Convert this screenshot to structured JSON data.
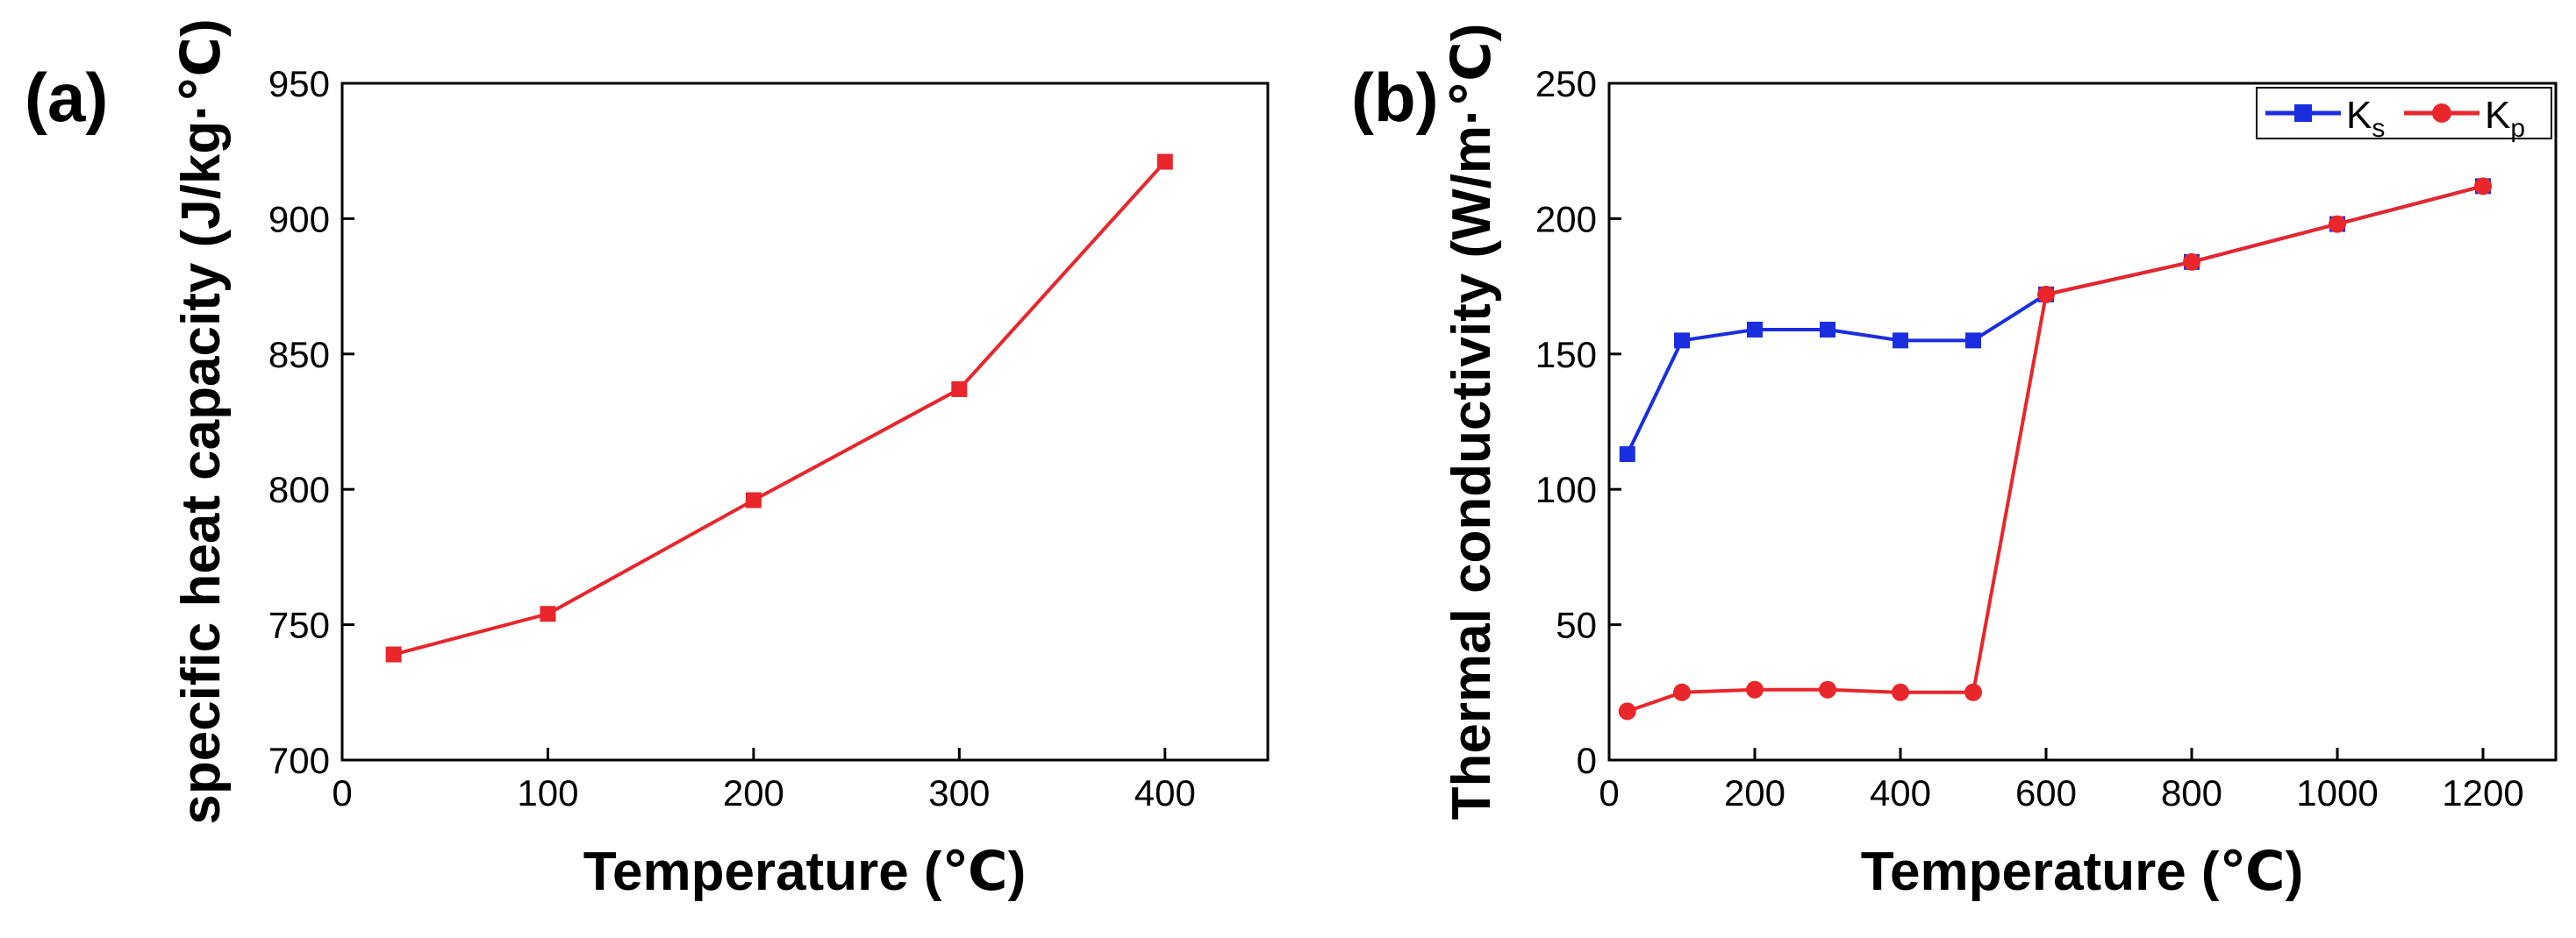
{
  "chart_data": [
    {
      "type": "line",
      "panel_label": "(a)",
      "title": "",
      "xlabel": "Temperature (℃)",
      "ylabel": "specific heat capacity (J/kg·℃)",
      "xlim": [
        0,
        450
      ],
      "ylim": [
        700,
        950
      ],
      "xticks": [
        0,
        100,
        200,
        300,
        400
      ],
      "yticks": [
        700,
        750,
        800,
        850,
        900,
        950
      ],
      "grid": false,
      "legend": null,
      "series": [
        {
          "name": "specific heat capacity",
          "color": "#e8262b",
          "marker": "square",
          "x": [
            25,
            100,
            200,
            300,
            400
          ],
          "values": [
            739,
            754,
            796,
            837,
            921
          ]
        }
      ]
    },
    {
      "type": "line",
      "panel_label": "(b)",
      "title": "",
      "xlabel": "Temperature (℃)",
      "ylabel": "Thermal conductivity (W/m·℃)",
      "xlim": [
        0,
        1300
      ],
      "ylim": [
        0,
        250
      ],
      "xticks": [
        0,
        200,
        400,
        600,
        800,
        1000,
        1200
      ],
      "yticks": [
        0,
        50,
        100,
        150,
        200,
        250
      ],
      "grid": false,
      "legend": {
        "placement": "top-right",
        "entries": [
          "K_s",
          "K_p"
        ]
      },
      "series": [
        {
          "name": "K",
          "subscript": "s",
          "color": "#1a2ee0",
          "marker": "square",
          "x": [
            25,
            100,
            200,
            300,
            400,
            500,
            600,
            800,
            1000,
            1200
          ],
          "values": [
            113,
            155,
            159,
            159,
            155,
            155,
            172,
            184,
            198,
            212
          ]
        },
        {
          "name": "K",
          "subscript": "p",
          "color": "#e8262b",
          "marker": "circle",
          "x": [
            25,
            100,
            200,
            300,
            400,
            500,
            600,
            800,
            1000,
            1200
          ],
          "values": [
            18,
            25,
            26,
            26,
            25,
            25,
            172,
            184,
            198,
            212
          ]
        }
      ]
    }
  ]
}
